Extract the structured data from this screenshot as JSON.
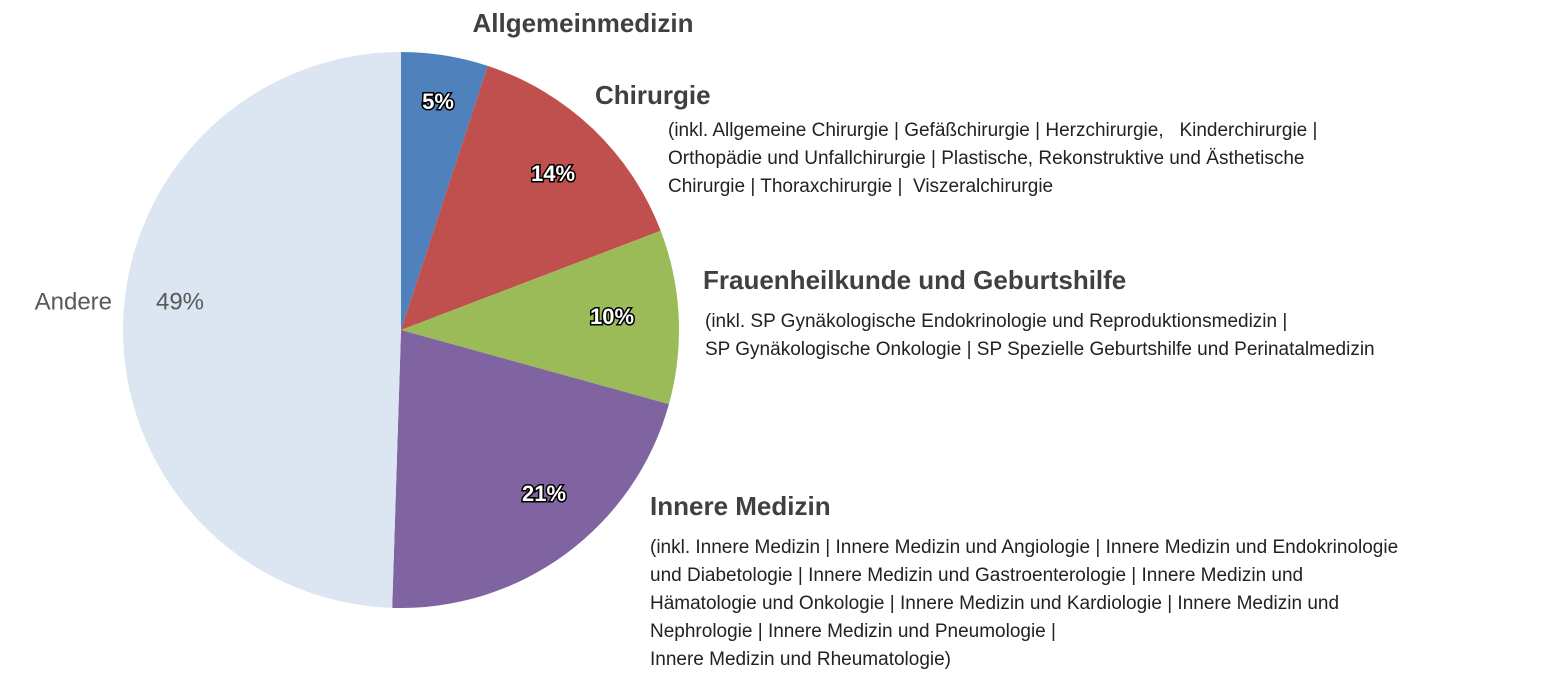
{
  "chart_data": {
    "type": "pie",
    "categories": [
      "Allgemeinmedizin",
      "Chirurgie",
      "Frauenheilkunde und Geburtshilfe",
      "Innere Medizin",
      "Andere"
    ],
    "values": [
      5,
      14,
      10,
      21,
      49
    ],
    "value_labels": [
      "5%",
      "14%",
      "10%",
      "21%",
      "49%"
    ],
    "colors": [
      "#4f81bd",
      "#c0504d",
      "#9bbb59",
      "#8064a2",
      "#dce6f2"
    ],
    "descriptions": [
      null,
      [
        "(inkl. Allgemeine Chirurgie | Gefäßchirurgie | Herzchirurgie,   Kinderchirurgie |",
        "Orthopädie und Unfallchirurgie | Plastische, Rekonstruktive und Ästhetische",
        "Chirurgie | Thoraxchirurgie |  Viszeralchirurgie"
      ],
      [
        "(inkl. SP Gynäkologische Endokrinologie und Reproduktionsmedizin |",
        "SP Gynäkologische Onkologie | SP Spezielle Geburtshilfe und Perinatalmedizin"
      ],
      [
        "(inkl. Innere Medizin | Innere Medizin und Angiologie | Innere Medizin und Endokrinologie",
        "und Diabetologie | Innere Medizin und Gastroenterologie | Innere Medizin und",
        "Hämatologie und Onkologie | Innere Medizin und Kardiologie | Innere Medizin und",
        "Nephrologie | Innere Medizin und Pneumologie |",
        "Innere Medizin und Rheumatologie)"
      ],
      null
    ]
  }
}
